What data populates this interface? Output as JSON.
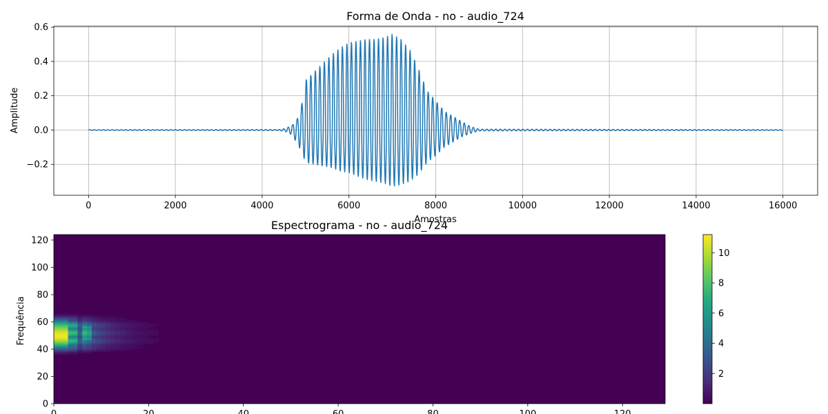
{
  "chart_data": [
    {
      "type": "line",
      "title": "Forma de Onda - no - audio_724",
      "xlabel": "Amostras",
      "ylabel": "Amplitude",
      "xlim": [
        -800,
        16800
      ],
      "ylim": [
        -0.38,
        0.605
      ],
      "xticks": [
        0,
        2000,
        4000,
        6000,
        8000,
        10000,
        12000,
        14000,
        16000
      ],
      "yticks": [
        -0.2,
        0.0,
        0.2,
        0.4,
        0.6
      ],
      "ytick_labels": [
        "−0.2",
        "0.0",
        "0.2",
        "0.4",
        "0.6"
      ],
      "grid": true,
      "color": "#1f77b4",
      "series": [
        {
          "x": [
            0,
            4400,
            4550,
            4700,
            4800,
            4900,
            5000,
            5200,
            5400,
            5600,
            5800,
            6000,
            6200,
            6400,
            6600,
            6800,
            7000,
            7200,
            7400,
            7600,
            7800,
            8000,
            8200,
            8400,
            8600,
            8800,
            9000,
            16000
          ],
          "max_env": [
            0.002,
            0.003,
            0.01,
            0.03,
            0.06,
            0.13,
            0.29,
            0.34,
            0.39,
            0.44,
            0.48,
            0.51,
            0.52,
            0.53,
            0.53,
            0.54,
            0.56,
            0.53,
            0.47,
            0.36,
            0.23,
            0.17,
            0.11,
            0.08,
            0.05,
            0.02,
            0.005,
            0.002
          ],
          "min_env": [
            -0.002,
            -0.003,
            -0.01,
            -0.03,
            -0.08,
            -0.12,
            -0.19,
            -0.2,
            -0.21,
            -0.22,
            -0.24,
            -0.25,
            -0.27,
            -0.29,
            -0.3,
            -0.31,
            -0.33,
            -0.32,
            -0.3,
            -0.26,
            -0.19,
            -0.15,
            -0.1,
            -0.07,
            -0.04,
            -0.02,
            -0.005,
            -0.002
          ]
        }
      ]
    },
    {
      "type": "heatmap",
      "title": "Espectrograma - no - audio_724",
      "xlabel": "",
      "ylabel": "Frequência",
      "xlim": [
        0,
        129
      ],
      "ylim": [
        0,
        124
      ],
      "xticks": [
        0,
        20,
        40,
        60,
        80,
        100,
        120
      ],
      "yticks": [
        0,
        20,
        40,
        60,
        80,
        100,
        120
      ],
      "colormap": "viridis",
      "colorbar": {
        "vmin": 0,
        "vmax": 11.2,
        "ticks": [
          2,
          4,
          6,
          8,
          10
        ]
      },
      "energy_region": {
        "time": [
          1,
          30
        ],
        "frequency": [
          38,
          65
        ],
        "peak_value": 11
      }
    }
  ]
}
